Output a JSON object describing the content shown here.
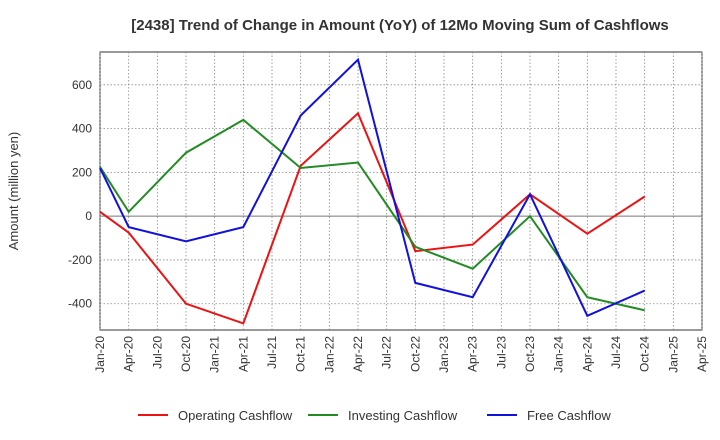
{
  "chart_data": {
    "type": "line",
    "title": "[2438]  Trend of Change in Amount (YoY) of 12Mo Moving Sum of Cashflows",
    "ylabel": "Amount (million yen)",
    "xlabel": "",
    "ylim": [
      -520,
      750
    ],
    "yticks": [
      -400,
      -200,
      0,
      200,
      400,
      600
    ],
    "categories": [
      "Jan-20",
      "Apr-20",
      "Jul-20",
      "Oct-20",
      "Jan-21",
      "Apr-21",
      "Jul-21",
      "Oct-21",
      "Jan-22",
      "Apr-22",
      "Jul-22",
      "Oct-22",
      "Jan-23",
      "Apr-23",
      "Jul-23",
      "Oct-23",
      "Jan-24",
      "Apr-24",
      "Jul-24",
      "Oct-24",
      "Jan-25",
      "Apr-25"
    ],
    "grid": true,
    "legend_position": "bottom",
    "series": [
      {
        "name": "Operating Cashflow",
        "color": "#ee1111",
        "values": [
          20,
          -75,
          null,
          -400,
          null,
          -490,
          null,
          230,
          null,
          470,
          null,
          -160,
          null,
          -130,
          null,
          100,
          null,
          -80,
          null,
          90,
          null,
          null
        ]
      },
      {
        "name": "Investing Cashflow",
        "color": "#228b22",
        "values": [
          225,
          20,
          null,
          290,
          null,
          440,
          null,
          220,
          null,
          245,
          null,
          -140,
          null,
          -240,
          null,
          0,
          null,
          -370,
          null,
          -430,
          null,
          null
        ]
      },
      {
        "name": "Free Cashflow",
        "color": "#1111dd",
        "values": [
          220,
          -50,
          null,
          -115,
          null,
          -50,
          null,
          460,
          null,
          715,
          null,
          -305,
          null,
          -370,
          null,
          100,
          null,
          -455,
          null,
          -340,
          null,
          null
        ]
      }
    ]
  }
}
